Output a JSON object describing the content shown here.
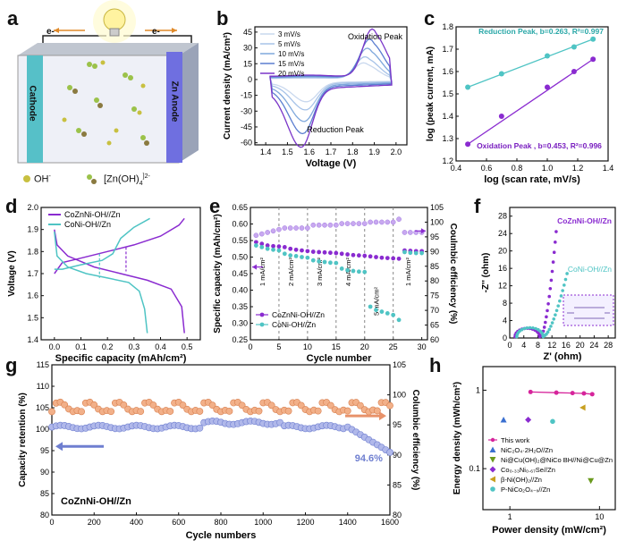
{
  "panels": {
    "a": {
      "letter": "a",
      "electron_left": "e-",
      "electron_right": "e-",
      "cathode": "Cathode",
      "anode": "Zn Anode",
      "legend_oh": "OH",
      "legend_oh_sup": "-",
      "legend_zinc": "[Zn(OH)",
      "legend_zinc_sub": "4",
      "legend_zinc_sup": "]2-",
      "colors": {
        "cathode": "#56c0c8",
        "anode": "#6f6fe0",
        "bulb": "#fff6a0"
      }
    },
    "b": {
      "letter": "b"
    },
    "c": {
      "letter": "c"
    },
    "d": {
      "letter": "d"
    },
    "e": {
      "letter": "e"
    },
    "f": {
      "letter": "f"
    },
    "g": {
      "letter": "g"
    },
    "h": {
      "letter": "h"
    }
  },
  "chart_data": [
    {
      "id": "b",
      "type": "line",
      "xlabel": "Voltage (V)",
      "ylabel": "Current density (mA/cm²)",
      "xlim": [
        1.35,
        2.05
      ],
      "ylim": [
        -62,
        50
      ],
      "xticks": [
        "1.4",
        "1.5",
        "1.6",
        "1.7",
        "1.8",
        "1.9",
        "2.0"
      ],
      "yticks": [
        "45",
        "30",
        "15",
        "0",
        "-15",
        "-30",
        "-45",
        "-60"
      ],
      "annotations": [
        "Oxidation Peak",
        "Reduction Peak"
      ],
      "series": [
        {
          "name": "3 mV/s",
          "color": "#c9d8ee",
          "scale": 0.33
        },
        {
          "name": "5 mV/s",
          "color": "#a7c3e8",
          "scale": 0.45
        },
        {
          "name": "10 mV/s",
          "color": "#7fa8dc",
          "scale": 0.62
        },
        {
          "name": "15 mV/s",
          "color": "#5b7ed0",
          "scale": 0.8
        },
        {
          "name": "20 mV/s",
          "color": "#7a35c8",
          "scale": 1.0
        }
      ]
    },
    {
      "id": "c",
      "type": "scatter",
      "xlabel": "log (scan rate, mV/s)",
      "ylabel": "log (peak current, mA)",
      "xlim": [
        0.4,
        1.4
      ],
      "ylim": [
        1.2,
        1.8
      ],
      "xticks": [
        "0.4",
        "0.6",
        "0.8",
        "1.0",
        "1.2",
        "1.4"
      ],
      "yticks": [
        "1.2",
        "1.3",
        "1.4",
        "1.5",
        "1.6",
        "1.7",
        "1.8"
      ],
      "series": [
        {
          "name": "Reduction Peak, b=0.263, R²=0.997",
          "color": "#4fc4c4",
          "x": [
            0.477,
            0.699,
            1.0,
            1.176,
            1.301
          ],
          "y": [
            1.53,
            1.59,
            1.67,
            1.71,
            1.745
          ]
        },
        {
          "name": "Oxidation Peak , b=0.453, R²=0.996",
          "color": "#8a2bd0",
          "x": [
            0.477,
            0.699,
            1.0,
            1.176,
            1.301
          ],
          "y": [
            1.275,
            1.4,
            1.53,
            1.6,
            1.655
          ]
        }
      ]
    },
    {
      "id": "d",
      "type": "line",
      "xlabel": "Specific capacity (mAh/cm²)",
      "ylabel": "Voltage (V)",
      "xlim": [
        -0.05,
        0.55
      ],
      "ylim": [
        1.4,
        2.0
      ],
      "xticks": [
        "0.0",
        "0.1",
        "0.2",
        "0.3",
        "0.4",
        "0.5"
      ],
      "yticks": [
        "1.4",
        "1.5",
        "1.6",
        "1.7",
        "1.8",
        "1.9",
        "2.0"
      ],
      "series": [
        {
          "name": "CoZnNi-OH//Zn",
          "color": "#8a2bd0"
        },
        {
          "name": "CoNi-OH//Zn",
          "color": "#4fc4c4"
        }
      ]
    },
    {
      "id": "e",
      "type": "scatter",
      "xlabel": "Cycle number",
      "ylabel": "Specific capacity (mAh/cm²)",
      "ylabel_right": "Coulmbic efficiency (%)",
      "xlim": [
        0,
        31
      ],
      "ylim": [
        0.25,
        0.65
      ],
      "ylim_right": [
        60,
        105
      ],
      "xticks": [
        "0",
        "5",
        "10",
        "15",
        "20",
        "25",
        "30"
      ],
      "yticks": [
        "0.25",
        "0.30",
        "0.35",
        "0.40",
        "0.45",
        "0.50",
        "0.55",
        "0.60",
        "0.65"
      ],
      "yticks_right": [
        "60",
        "65",
        "70",
        "75",
        "80",
        "85",
        "90",
        "95",
        "100",
        "105"
      ],
      "rate_labels": [
        "1 mA/cm²",
        "2 mA/cm²",
        "3 mA/cm²",
        "4 mA/cm²",
        "5 mA/cm²",
        "1 mA/cm²"
      ],
      "series": [
        {
          "name": "CoZnNi-OH//Zn",
          "color": "#8a2bd0",
          "y": [
            0.545,
            0.54,
            0.535,
            0.533,
            0.532,
            0.53,
            0.525,
            0.522,
            0.52,
            0.518,
            0.516,
            0.515,
            0.514,
            0.513,
            0.512,
            0.51,
            0.508,
            0.506,
            0.505,
            0.504,
            0.502,
            0.5,
            0.498,
            0.497,
            0.496,
            0.495,
            0.52,
            0.519,
            0.518,
            0.518
          ]
        },
        {
          "name": "CoNi-OH//Zn",
          "color": "#4fc4c4",
          "y": [
            0.535,
            0.53,
            0.525,
            0.522,
            0.52,
            0.51,
            0.505,
            0.503,
            0.5,
            0.498,
            0.49,
            0.487,
            0.485,
            0.483,
            0.482,
            0.465,
            0.46,
            0.458,
            0.456,
            0.455,
            0.35,
            0.34,
            0.335,
            0.33,
            0.325,
            0.31,
            0.515,
            0.513,
            0.512,
            0.512
          ]
        }
      ]
    },
    {
      "id": "f",
      "type": "scatter",
      "xlabel": "Z' (ohm)",
      "ylabel": "-Z'' (ohm)",
      "xlim": [
        0,
        30
      ],
      "ylim": [
        0,
        30
      ],
      "xticks": [
        "0",
        "4",
        "8",
        "12",
        "16",
        "20",
        "24",
        "28"
      ],
      "yticks": [
        "0",
        "4",
        "8",
        "12",
        "16",
        "20",
        "24",
        "28"
      ],
      "series": [
        {
          "name": "CoZnNi-OH//Zn",
          "color": "#8a2bd0"
        },
        {
          "name": "CoNi-OH//Zn",
          "color": "#4fc4c4"
        }
      ]
    },
    {
      "id": "g",
      "type": "scatter",
      "xlabel": "Cycle numbers",
      "ylabel": "Capacity retention (%)",
      "ylabel_right": "Columbic efficiency (%)",
      "xlim": [
        0,
        1600
      ],
      "ylim": [
        80,
        115
      ],
      "ylim_right": [
        80,
        105
      ],
      "xticks": [
        "0",
        "200",
        "400",
        "600",
        "800",
        "1000",
        "1200",
        "1400",
        "1600"
      ],
      "yticks": [
        "80",
        "85",
        "90",
        "95",
        "100",
        "105",
        "110",
        "115"
      ],
      "yticks_right": [
        "80",
        "85",
        "90",
        "95",
        "100",
        "105"
      ],
      "annotation": "94.6%",
      "inset_label": "CoZnNi-OH//Zn",
      "series": [
        {
          "name": "Capacity retention",
          "color": "#6f7fd0"
        },
        {
          "name": "Columbic efficiency",
          "color": "#e8926a"
        }
      ]
    },
    {
      "id": "h",
      "type": "scatter",
      "xlabel": "Power density (mW/cm²)",
      "ylabel": "Energy density (mWh/cm²)",
      "xscale": "log",
      "yscale": "log",
      "xlim": [
        0.5,
        15
      ],
      "ylim": [
        0.03,
        2
      ],
      "xticks": [
        "1",
        "10"
      ],
      "yticks": [
        "0.1",
        "1"
      ],
      "series": [
        {
          "name": "This work",
          "color": "#d6249b",
          "marker": "line-circle",
          "x": [
            1.7,
            3.3,
            5.0,
            6.7,
            8.3
          ],
          "y": [
            0.95,
            0.93,
            0.92,
            0.91,
            0.89
          ]
        },
        {
          "name": "NiC₂O₄·2H₂O//Zn",
          "color": "#3a6fd0",
          "marker": "triangle",
          "x": [
            0.85
          ],
          "y": [
            0.42
          ]
        },
        {
          "name": "Ni@Cu(OH)₂@NiCo BH//Ni@Cu@Zn",
          "color": "#6a9a1e",
          "marker": "triangle-down",
          "x": [
            8.0
          ],
          "y": [
            0.07
          ]
        },
        {
          "name": "Co₀.₃₃Ni₀.₆₇Se//Zn",
          "color": "#8a2bd0",
          "marker": "diamond",
          "x": [
            1.6
          ],
          "y": [
            0.42
          ]
        },
        {
          "name": "β-Ni(OH)₂//Zn",
          "color": "#c8a020",
          "marker": "triangle-left",
          "x": [
            6.5
          ],
          "y": [
            0.6
          ]
        },
        {
          "name": "P-NiCo₂O₄₋ₓ//Zn",
          "color": "#4fc4c4",
          "marker": "hexagon",
          "x": [
            3.0
          ],
          "y": [
            0.4
          ]
        }
      ]
    }
  ]
}
